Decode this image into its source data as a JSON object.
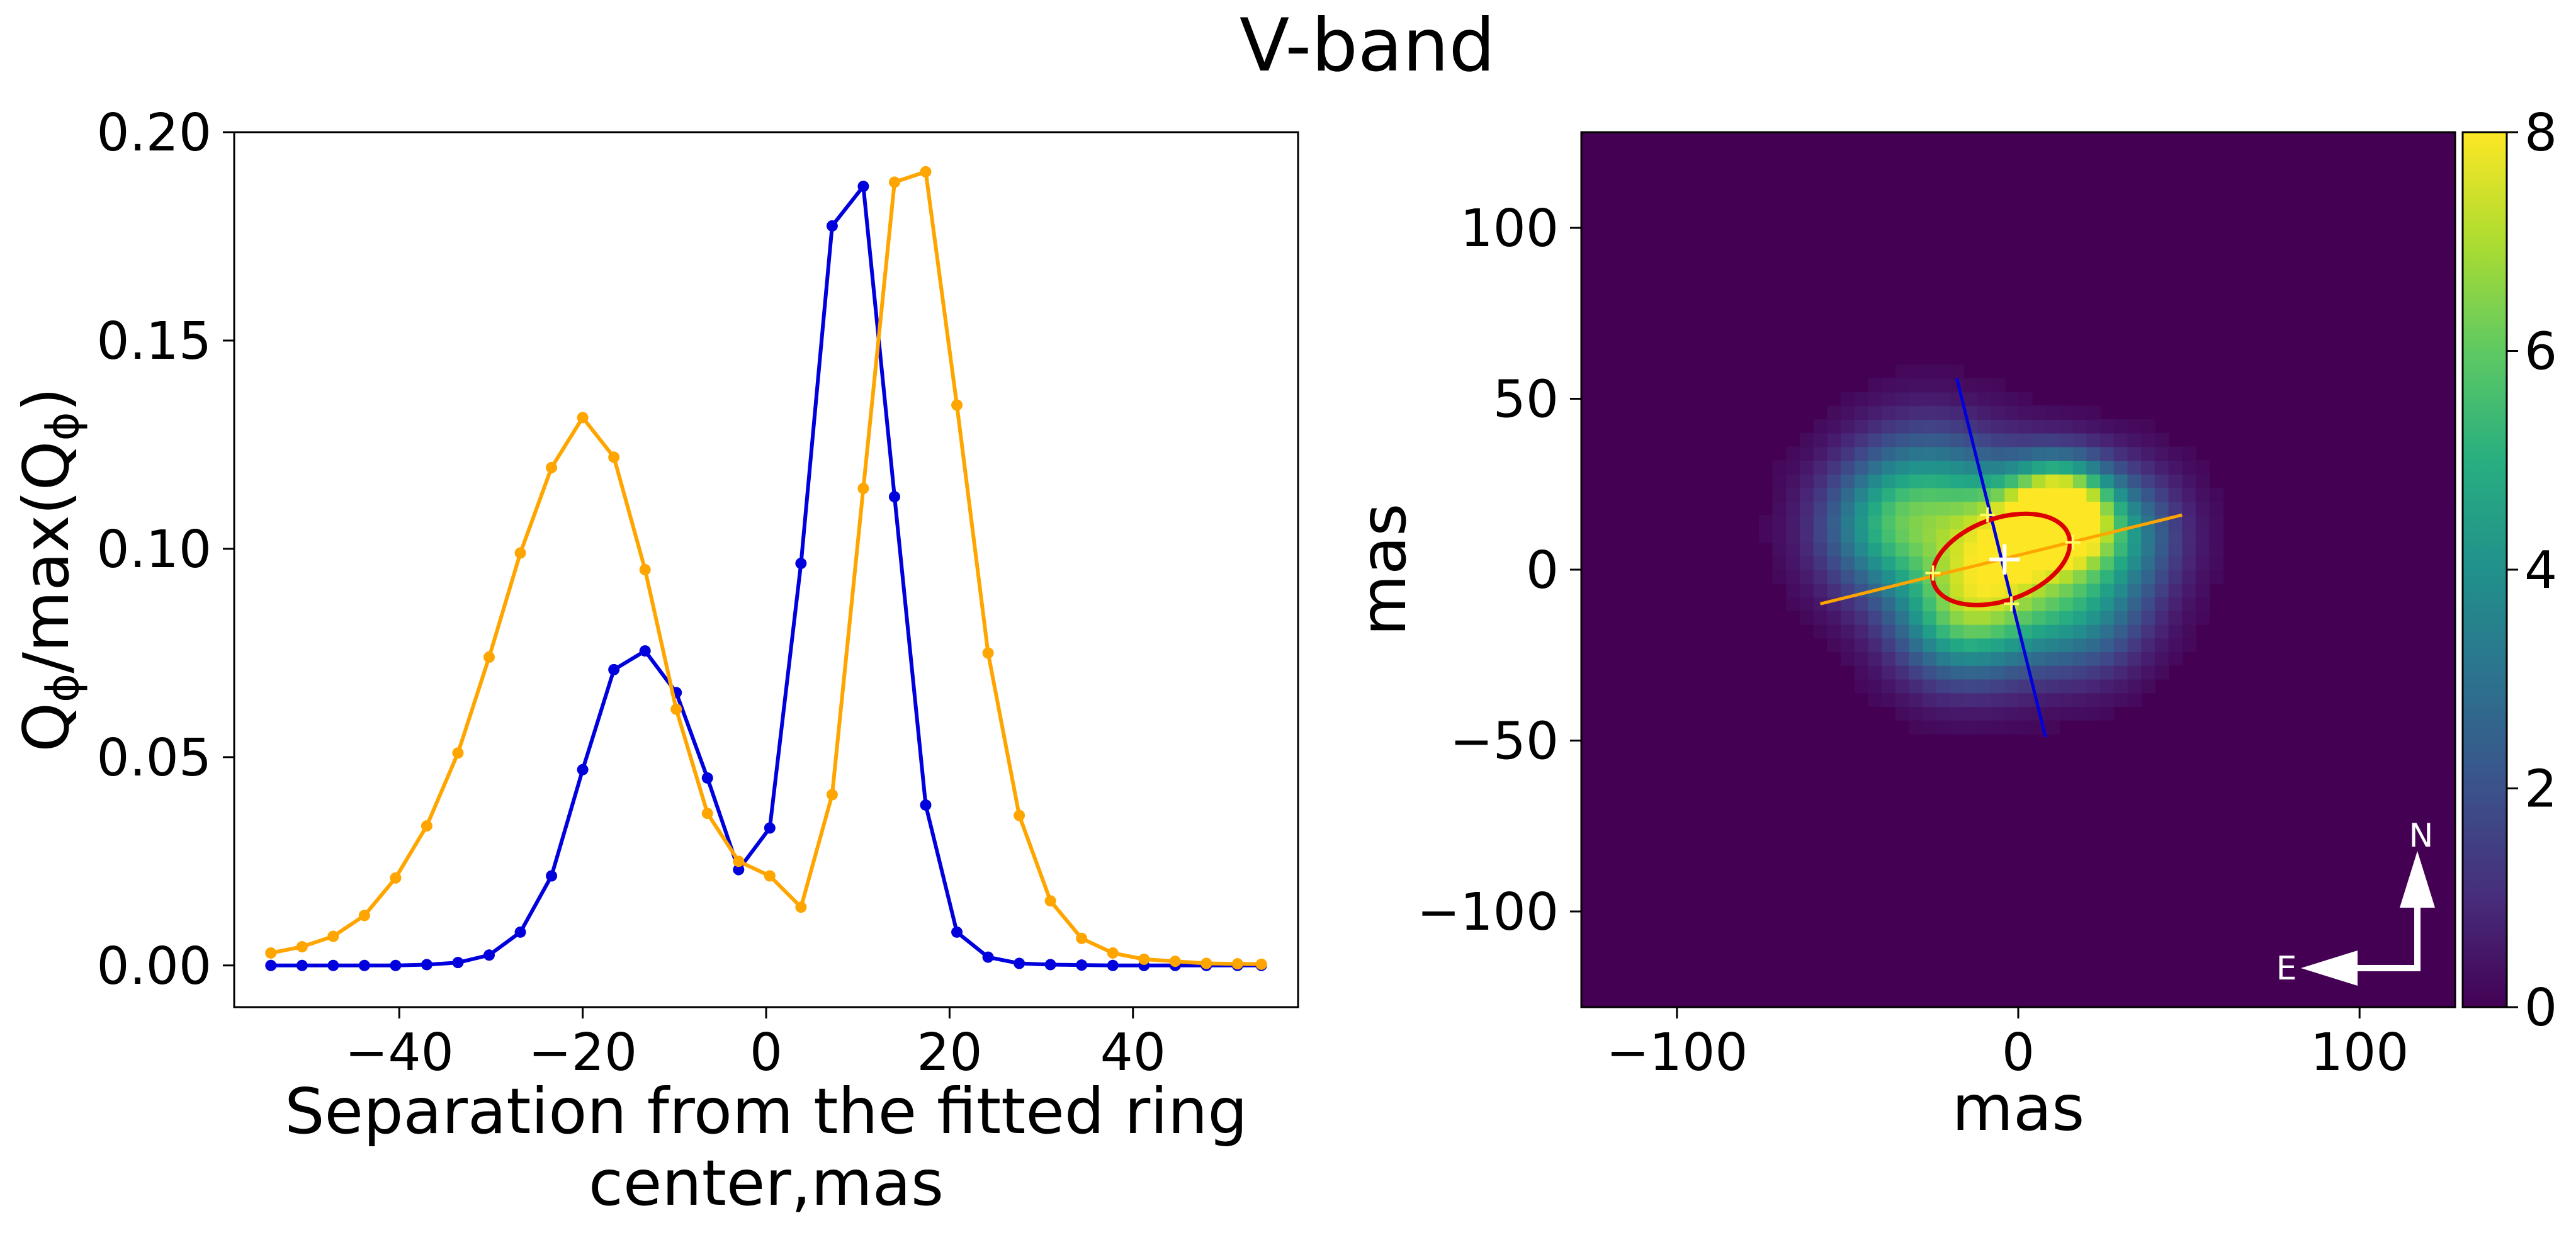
{
  "chart_data": [
    {
      "type": "line",
      "title": "V-band",
      "xlabel_line1": "Separation from the fitted ring",
      "xlabel_line2": "center,mas",
      "ylabel_main": "Q",
      "ylabel_sub": "ϕ",
      "ylabel_mid": "/max(Q",
      "ylabel_end": ")",
      "xlim": [
        -58,
        58
      ],
      "ylim": [
        -0.01,
        0.2
      ],
      "xticks": [
        -40,
        -20,
        0,
        20,
        40
      ],
      "xtick_labels": [
        "−40",
        "−20",
        "0",
        "20",
        "40"
      ],
      "yticks": [
        0.0,
        0.05,
        0.1,
        0.15,
        0.2
      ],
      "ytick_labels": [
        "0.00",
        "0.05",
        "0.10",
        "0.15",
        "0.20"
      ],
      "series": [
        {
          "color": "#0000dd",
          "x": [
            -54,
            -50.6,
            -47.2,
            -43.8,
            -40.4,
            -37,
            -33.6,
            -30.2,
            -26.8,
            -23.4,
            -20,
            -16.6,
            -13.2,
            -9.8,
            -6.4,
            -3,
            0.4,
            3.8,
            7.2,
            10.6,
            14,
            17.4,
            20.8,
            24.2,
            27.6,
            31,
            34.4,
            37.8,
            41.2,
            44.6,
            48,
            51.4,
            54
          ],
          "y": [
            0.0,
            0.0,
            0.0,
            0.0,
            0.0,
            0.0002,
            0.0007,
            0.0025,
            0.008,
            0.0215,
            0.047,
            0.071,
            0.0755,
            0.0655,
            0.045,
            0.023,
            0.033,
            0.0965,
            0.1775,
            0.187,
            0.1125,
            0.0385,
            0.008,
            0.002,
            0.0005,
            0.0002,
            0.0001,
            0.0,
            0.0,
            0.0,
            0.0,
            0.0,
            0.0
          ]
        },
        {
          "color": "#ffa500",
          "x": [
            -54,
            -50.6,
            -47.2,
            -43.8,
            -40.4,
            -37,
            -33.6,
            -30.2,
            -26.8,
            -23.4,
            -20,
            -16.6,
            -13.2,
            -9.8,
            -6.4,
            -3,
            0.4,
            3.8,
            7.2,
            10.6,
            14,
            17.4,
            20.8,
            24.2,
            27.6,
            31,
            34.4,
            37.8,
            41.2,
            44.6,
            48,
            51.4,
            54
          ],
          "y": [
            0.003,
            0.0045,
            0.007,
            0.012,
            0.021,
            0.0335,
            0.051,
            0.074,
            0.099,
            0.1195,
            0.1315,
            0.122,
            0.095,
            0.0615,
            0.0365,
            0.025,
            0.0215,
            0.014,
            0.041,
            0.1145,
            0.188,
            0.1905,
            0.1345,
            0.075,
            0.036,
            0.0155,
            0.0065,
            0.003,
            0.0015,
            0.001,
            0.0005,
            0.0004,
            0.0003
          ]
        }
      ]
    },
    {
      "type": "heatmap",
      "xlabel": "mas",
      "ylabel": "mas",
      "xlim": [
        -128,
        128
      ],
      "ylim": [
        -128,
        128
      ],
      "xticks": [
        -100,
        0,
        100
      ],
      "xtick_labels": [
        "−100",
        "0",
        "100"
      ],
      "yticks": [
        -100,
        -50,
        0,
        50,
        100
      ],
      "ytick_labels": [
        "−100",
        "−50",
        "0",
        "50",
        "100"
      ],
      "colormap": "viridis",
      "colorbar_range": [
        0,
        8
      ],
      "colorbar_ticks": [
        0,
        2,
        4,
        6,
        8
      ],
      "colorbar_tick_labels": [
        "0",
        "2",
        "4",
        "6",
        "8"
      ],
      "emission_blobs": [
        {
          "x": 12,
          "y": 17,
          "amp": 8.0,
          "sigma": 10
        },
        {
          "x": -6,
          "y": 10,
          "amp": 5.2,
          "sigma": 14
        },
        {
          "x": -38,
          "y": 12,
          "amp": 4.2,
          "sigma": 14
        },
        {
          "x": -18,
          "y": -14,
          "amp": 4.6,
          "sigma": 13
        },
        {
          "x": 28,
          "y": 10,
          "amp": 3.8,
          "sigma": 13
        },
        {
          "x": 4,
          "y": -10,
          "amp": 3.0,
          "sigma": 14
        },
        {
          "x": -26,
          "y": 26,
          "amp": 2.2,
          "sigma": 14
        },
        {
          "x": 22,
          "y": -14,
          "amp": 2.0,
          "sigma": 12
        }
      ],
      "ring_ellipse": {
        "cx": -5,
        "cy": 3,
        "rx": 21,
        "ry": 12,
        "angle_deg": 20,
        "color": "#dd0000"
      },
      "center_marker": {
        "x": -4,
        "y": 3,
        "color": "#ffffff"
      },
      "major_axis_line": {
        "x1": -58,
        "y1": -10,
        "x2": 48,
        "y2": 16,
        "color": "#ffa500"
      },
      "minor_axis_line": {
        "x1": -18,
        "y1": 56,
        "x2": 8,
        "y2": -49,
        "color": "#0000dd"
      },
      "cross_markers": [
        {
          "x": -25,
          "y": -1
        },
        {
          "x": 16,
          "y": 8
        },
        {
          "x": -9,
          "y": 16
        },
        {
          "x": -2,
          "y": -10
        }
      ],
      "compass": {
        "north_label": "N",
        "east_label": "E"
      }
    }
  ]
}
